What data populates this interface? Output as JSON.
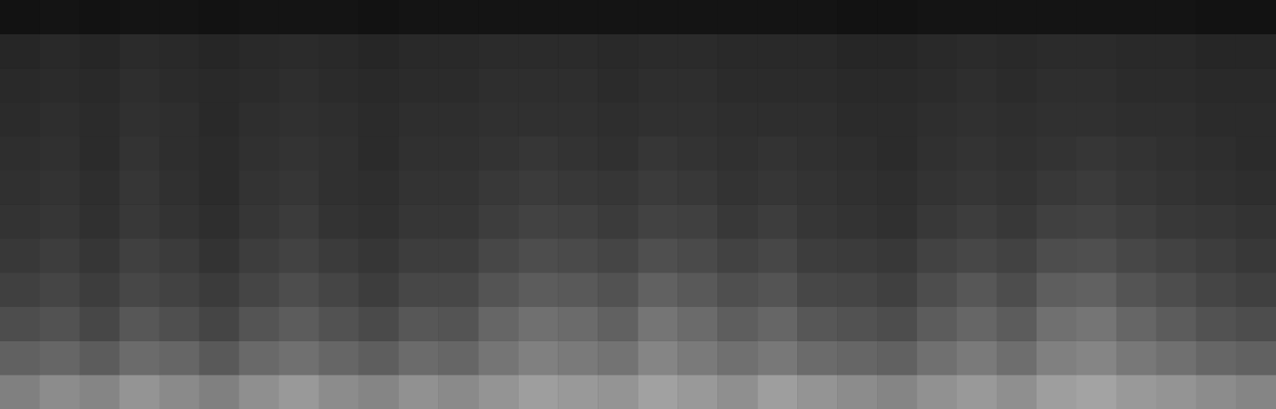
{
  "chart_data": {
    "type": "heatmap",
    "tick_labels": false,
    "grid": false,
    "value_range": [
      0,
      100
    ],
    "colors": [
      "#000000",
      "#ffffff"
    ],
    "cells": [
      [
        50,
        55,
        52,
        58,
        54,
        50,
        56,
        60,
        55,
        52,
        57,
        54,
        58,
        62,
        60,
        58,
        63,
        60,
        56,
        62,
        58,
        55,
        52,
        57,
        60,
        56,
        62,
        64,
        60,
        58,
        55,
        52
      ],
      [
        38,
        40,
        36,
        42,
        40,
        35,
        41,
        44,
        40,
        37,
        42,
        40,
        46,
        50,
        48,
        45,
        52,
        48,
        44,
        47,
        42,
        40,
        38,
        44,
        48,
        43,
        50,
        52,
        47,
        44,
        40,
        38
      ],
      [
        30,
        32,
        28,
        34,
        31,
        27,
        33,
        36,
        32,
        29,
        34,
        33,
        40,
        44,
        42,
        38,
        46,
        42,
        37,
        40,
        34,
        32,
        30,
        36,
        40,
        36,
        44,
        46,
        40,
        36,
        32,
        30
      ],
      [
        25,
        27,
        24,
        28,
        26,
        23,
        27,
        30,
        27,
        24,
        28,
        28,
        33,
        36,
        35,
        32,
        38,
        35,
        31,
        33,
        28,
        27,
        25,
        30,
        34,
        30,
        37,
        38,
        33,
        30,
        27,
        25
      ],
      [
        22,
        24,
        21,
        25,
        23,
        20,
        24,
        26,
        23,
        21,
        24,
        24,
        28,
        30,
        29,
        27,
        31,
        29,
        26,
        28,
        24,
        23,
        22,
        26,
        28,
        26,
        30,
        31,
        28,
        26,
        24,
        22
      ],
      [
        20,
        21,
        19,
        22,
        20,
        18,
        21,
        23,
        20,
        19,
        21,
        21,
        24,
        26,
        25,
        23,
        26,
        25,
        22,
        24,
        21,
        20,
        19,
        22,
        24,
        22,
        25,
        26,
        24,
        22,
        21,
        20
      ],
      [
        19,
        20,
        18,
        21,
        19,
        17,
        20,
        21,
        19,
        18,
        20,
        20,
        22,
        23,
        22,
        21,
        23,
        22,
        20,
        21,
        20,
        19,
        18,
        20,
        21,
        20,
        22,
        23,
        21,
        20,
        19,
        18
      ],
      [
        18,
        19,
        17,
        20,
        18,
        17,
        19,
        20,
        19,
        17,
        19,
        19,
        20,
        21,
        20,
        19,
        21,
        20,
        19,
        20,
        19,
        18,
        17,
        19,
        20,
        19,
        20,
        21,
        20,
        19,
        18,
        17
      ],
      [
        17,
        18,
        17,
        19,
        18,
        16,
        18,
        19,
        18,
        17,
        18,
        18,
        19,
        19,
        19,
        18,
        19,
        19,
        18,
        18,
        18,
        17,
        17,
        18,
        19,
        18,
        19,
        19,
        18,
        18,
        17,
        17
      ],
      [
        16,
        17,
        16,
        18,
        17,
        16,
        17,
        18,
        17,
        16,
        17,
        17,
        18,
        18,
        18,
        17,
        18,
        18,
        17,
        17,
        17,
        16,
        16,
        17,
        18,
        17,
        18,
        18,
        17,
        17,
        16,
        16
      ],
      [
        15,
        16,
        15,
        17,
        16,
        15,
        16,
        17,
        16,
        15,
        16,
        16,
        17,
        17,
        17,
        16,
        17,
        17,
        16,
        16,
        16,
        15,
        15,
        16,
        17,
        16,
        17,
        17,
        16,
        16,
        15,
        15
      ],
      [
        7,
        8,
        7,
        8,
        8,
        7,
        8,
        8,
        8,
        7,
        8,
        8,
        8,
        8,
        8,
        8,
        8,
        8,
        8,
        8,
        8,
        7,
        7,
        8,
        8,
        8,
        8,
        8,
        8,
        8,
        7,
        7
      ]
    ]
  }
}
